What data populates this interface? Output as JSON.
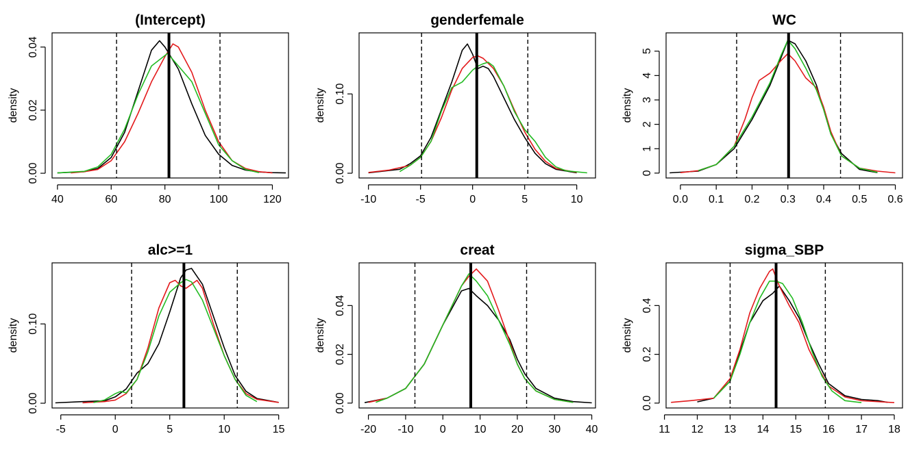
{
  "chart_data": [
    {
      "type": "line",
      "title": "(Intercept)",
      "xlabel": "",
      "ylabel": "density",
      "xlim": [
        38,
        126
      ],
      "ylim": [
        -0.0015,
        0.0445
      ],
      "xticks": [
        40,
        60,
        80,
        100,
        120
      ],
      "yticks": [
        0.0,
        0.02,
        0.04
      ],
      "ytick_labels": [
        "0.00",
        "0.02",
        "0.04"
      ],
      "posterior_mean": 81.5,
      "ci_lower": 62,
      "ci_upper": 100.5,
      "series": [
        {
          "color": "#000000",
          "x": [
            40,
            50,
            55,
            60,
            65,
            70,
            75,
            78,
            80,
            85,
            90,
            95,
            100,
            105,
            110,
            115,
            120,
            125
          ],
          "y": [
            0.0001,
            0.0005,
            0.0015,
            0.005,
            0.013,
            0.026,
            0.039,
            0.042,
            0.04,
            0.033,
            0.022,
            0.012,
            0.006,
            0.0025,
            0.001,
            0.0004,
            0.0002,
            0.0001
          ]
        },
        {
          "color": "#e31a1c",
          "x": [
            45,
            50,
            55,
            60,
            65,
            70,
            75,
            80,
            83,
            85,
            90,
            95,
            100,
            105,
            110,
            115,
            120
          ],
          "y": [
            0.0001,
            0.0005,
            0.0012,
            0.004,
            0.01,
            0.019,
            0.029,
            0.037,
            0.041,
            0.04,
            0.032,
            0.02,
            0.01,
            0.004,
            0.0015,
            0.0005,
            0.0001
          ]
        },
        {
          "color": "#22bb22",
          "x": [
            40,
            50,
            55,
            60,
            65,
            70,
            75,
            81,
            85,
            90,
            95,
            100,
            105,
            110,
            115
          ],
          "y": [
            0.0001,
            0.0006,
            0.002,
            0.006,
            0.014,
            0.025,
            0.034,
            0.038,
            0.034,
            0.029,
            0.019,
            0.009,
            0.004,
            0.0012,
            0.0002
          ]
        }
      ]
    },
    {
      "type": "line",
      "title": "genderfemale",
      "xlabel": "",
      "ylabel": "density",
      "xlim": [
        -10.9,
        11.8
      ],
      "ylim": [
        -0.006,
        0.177
      ],
      "xticks": [
        -10,
        -5,
        0,
        5,
        10
      ],
      "yticks": [
        0.0,
        0.1
      ],
      "ytick_labels": [
        "0.00",
        "0.10"
      ],
      "posterior_mean": 0.4,
      "ci_lower": -4.9,
      "ci_upper": 5.3,
      "series": [
        {
          "color": "#000000",
          "x": [
            -10,
            -7,
            -6,
            -5,
            -4,
            -3,
            -2,
            -1,
            -0.5,
            0,
            0.5,
            1,
            1.5,
            2,
            3,
            4,
            5,
            6,
            7,
            8,
            10
          ],
          "y": [
            0.0005,
            0.005,
            0.012,
            0.022,
            0.045,
            0.08,
            0.115,
            0.155,
            0.163,
            0.15,
            0.132,
            0.135,
            0.132,
            0.122,
            0.095,
            0.068,
            0.045,
            0.025,
            0.012,
            0.005,
            0.0005
          ]
        },
        {
          "color": "#e31a1c",
          "x": [
            -10,
            -8,
            -6,
            -5,
            -4,
            -3,
            -2,
            -1,
            0,
            0.5,
            1,
            2,
            3,
            4,
            5,
            6,
            7,
            8,
            10
          ],
          "y": [
            0.001,
            0.004,
            0.01,
            0.02,
            0.04,
            0.07,
            0.105,
            0.132,
            0.146,
            0.148,
            0.145,
            0.132,
            0.11,
            0.08,
            0.052,
            0.03,
            0.015,
            0.006,
            0.001
          ]
        },
        {
          "color": "#22bb22",
          "x": [
            -7,
            -6,
            -5,
            -4,
            -3,
            -2,
            -1,
            0,
            0.5,
            1,
            1.5,
            2,
            3,
            4,
            5,
            6,
            7,
            8,
            9,
            11
          ],
          "y": [
            0.002,
            0.01,
            0.02,
            0.04,
            0.078,
            0.108,
            0.115,
            0.13,
            0.135,
            0.138,
            0.14,
            0.135,
            0.11,
            0.078,
            0.055,
            0.04,
            0.02,
            0.008,
            0.003,
            0.0005
          ]
        }
      ]
    },
    {
      "type": "line",
      "title": "WC",
      "xlabel": "",
      "ylabel": "density",
      "xlim": [
        -0.04,
        0.62
      ],
      "ylim": [
        -0.2,
        5.75
      ],
      "xticks": [
        0.0,
        0.1,
        0.2,
        0.3,
        0.4,
        0.5,
        0.6
      ],
      "xtick_labels": [
        "0.0",
        "0.1",
        "0.2",
        "0.3",
        "0.4",
        "0.5",
        "0.6"
      ],
      "yticks": [
        0,
        1,
        2,
        3,
        4,
        5
      ],
      "ytick_labels": [
        "0",
        "1",
        "2",
        "3",
        "4",
        "5"
      ],
      "posterior_mean": 0.302,
      "ci_lower": 0.157,
      "ci_upper": 0.447,
      "series": [
        {
          "color": "#000000",
          "x": [
            -0.03,
            0.05,
            0.1,
            0.15,
            0.2,
            0.25,
            0.28,
            0.3,
            0.32,
            0.35,
            0.38,
            0.4,
            0.42,
            0.45,
            0.5,
            0.55
          ],
          "y": [
            0.01,
            0.08,
            0.35,
            1.0,
            2.2,
            3.6,
            4.7,
            5.45,
            5.3,
            4.6,
            3.6,
            2.6,
            1.6,
            0.8,
            0.15,
            0.02
          ]
        },
        {
          "color": "#e31a1c",
          "x": [
            0.0,
            0.05,
            0.1,
            0.15,
            0.18,
            0.2,
            0.22,
            0.25,
            0.28,
            0.3,
            0.32,
            0.35,
            0.38,
            0.4,
            0.42,
            0.45,
            0.5,
            0.55,
            0.6
          ],
          "y": [
            0.02,
            0.1,
            0.35,
            1.1,
            2.2,
            3.1,
            3.8,
            4.1,
            4.6,
            4.9,
            4.6,
            3.9,
            3.5,
            2.7,
            1.7,
            0.7,
            0.2,
            0.08,
            0.01
          ]
        },
        {
          "color": "#22bb22",
          "x": [
            0.05,
            0.1,
            0.15,
            0.2,
            0.25,
            0.28,
            0.3,
            0.32,
            0.35,
            0.38,
            0.4,
            0.42,
            0.45,
            0.5,
            0.55
          ],
          "y": [
            0.1,
            0.35,
            1.1,
            2.3,
            3.7,
            4.8,
            5.45,
            5.1,
            4.3,
            3.4,
            2.6,
            1.6,
            0.7,
            0.2,
            0.03
          ]
        }
      ]
    },
    {
      "type": "line",
      "title": "alc>=1",
      "xlabel": "",
      "ylabel": "density",
      "xlim": [
        -5.8,
        15.9
      ],
      "ylim": [
        -0.006,
        0.177
      ],
      "xticks": [
        -5,
        0,
        5,
        10,
        15
      ],
      "yticks": [
        0.0,
        0.1
      ],
      "ytick_labels": [
        "0.00",
        "0.10"
      ],
      "posterior_mean": 6.3,
      "ci_lower": 1.5,
      "ci_upper": 11.2,
      "series": [
        {
          "color": "#000000",
          "x": [
            -5.5,
            -3,
            -1,
            0,
            1,
            2,
            3,
            4,
            5,
            6,
            6.5,
            7,
            8,
            9,
            10,
            11,
            12,
            13,
            15
          ],
          "y": [
            0.0005,
            0.002,
            0.003,
            0.008,
            0.018,
            0.038,
            0.05,
            0.075,
            0.115,
            0.158,
            0.168,
            0.17,
            0.15,
            0.11,
            0.07,
            0.035,
            0.015,
            0.006,
            0.001
          ]
        },
        {
          "color": "#e31a1c",
          "x": [
            -3,
            -1,
            0,
            1,
            2,
            3,
            4,
            5,
            5.5,
            6,
            6.5,
            7,
            7.5,
            8,
            9,
            10,
            11,
            12,
            13,
            15
          ],
          "y": [
            0.0005,
            0.002,
            0.004,
            0.012,
            0.03,
            0.07,
            0.12,
            0.152,
            0.155,
            0.148,
            0.145,
            0.15,
            0.155,
            0.145,
            0.1,
            0.06,
            0.03,
            0.012,
            0.005,
            0.001
          ]
        },
        {
          "color": "#22bb22",
          "x": [
            -2,
            -1,
            0,
            0.5,
            1,
            2,
            3,
            4,
            5,
            6,
            6.5,
            7,
            8,
            9,
            10,
            11,
            12,
            13
          ],
          "y": [
            0.0008,
            0.004,
            0.012,
            0.015,
            0.013,
            0.03,
            0.065,
            0.11,
            0.14,
            0.152,
            0.156,
            0.153,
            0.13,
            0.095,
            0.06,
            0.03,
            0.01,
            0.002
          ]
        }
      ]
    },
    {
      "type": "line",
      "title": "creat",
      "xlabel": "",
      "ylabel": "density",
      "xlim": [
        -22.5,
        41
      ],
      "ylim": [
        -0.002,
        0.0575
      ],
      "xticks": [
        -20,
        -10,
        0,
        10,
        20,
        30,
        40
      ],
      "yticks": [
        0.0,
        0.02,
        0.04
      ],
      "ytick_labels": [
        "0.00",
        "0.02",
        "0.04"
      ],
      "posterior_mean": 7.5,
      "ci_lower": -7.5,
      "ci_upper": 22.5,
      "series": [
        {
          "color": "#000000",
          "x": [
            -21,
            -15,
            -10,
            -5,
            0,
            5,
            7,
            9,
            12,
            15,
            18,
            20,
            22,
            25,
            30,
            35,
            40
          ],
          "y": [
            0.0002,
            0.002,
            0.006,
            0.016,
            0.032,
            0.046,
            0.047,
            0.044,
            0.04,
            0.034,
            0.026,
            0.018,
            0.012,
            0.006,
            0.002,
            0.0006,
            0.0001
          ]
        },
        {
          "color": "#e31a1c",
          "x": [
            -20,
            -15,
            -10,
            -5,
            0,
            5,
            7,
            9,
            12,
            15,
            18,
            20,
            22,
            25,
            30,
            35
          ],
          "y": [
            0.0003,
            0.002,
            0.006,
            0.016,
            0.032,
            0.048,
            0.052,
            0.055,
            0.05,
            0.038,
            0.025,
            0.016,
            0.01,
            0.005,
            0.0015,
            0.0003
          ]
        },
        {
          "color": "#22bb22",
          "x": [
            -18,
            -15,
            -10,
            -5,
            0,
            5,
            7,
            9,
            12,
            15,
            18,
            20,
            22,
            25,
            30,
            35
          ],
          "y": [
            0.0003,
            0.002,
            0.006,
            0.016,
            0.032,
            0.048,
            0.053,
            0.05,
            0.044,
            0.034,
            0.024,
            0.016,
            0.01,
            0.005,
            0.0015,
            0.0003
          ]
        }
      ]
    },
    {
      "type": "line",
      "title": "sigma_SBP",
      "xlabel": "",
      "ylabel": "density",
      "xlim": [
        11.05,
        18.25
      ],
      "ylim": [
        -0.02,
        0.575
      ],
      "xticks": [
        11,
        12,
        13,
        14,
        15,
        16,
        17,
        18
      ],
      "yticks": [
        0.0,
        0.2,
        0.4
      ],
      "ytick_labels": [
        "0.0",
        "0.2",
        "0.4"
      ],
      "posterior_mean": 14.4,
      "ci_lower": 13.0,
      "ci_upper": 15.9,
      "series": [
        {
          "color": "#000000",
          "x": [
            12,
            12.5,
            13,
            13.3,
            13.6,
            14.0,
            14.3,
            14.5,
            14.8,
            15.1,
            15.4,
            15.7,
            16.0,
            16.5,
            17.0,
            17.5,
            17.8
          ],
          "y": [
            0.005,
            0.02,
            0.09,
            0.21,
            0.33,
            0.42,
            0.45,
            0.48,
            0.42,
            0.35,
            0.25,
            0.16,
            0.08,
            0.03,
            0.015,
            0.01,
            0.003
          ]
        },
        {
          "color": "#e31a1c",
          "x": [
            11.2,
            11.8,
            12.5,
            13.0,
            13.3,
            13.6,
            13.9,
            14.2,
            14.3,
            14.5,
            14.8,
            15.1,
            15.4,
            15.7,
            16.0,
            16.5,
            17.0,
            18.0
          ],
          "y": [
            0.003,
            0.01,
            0.02,
            0.1,
            0.22,
            0.37,
            0.47,
            0.54,
            0.55,
            0.48,
            0.4,
            0.33,
            0.22,
            0.14,
            0.07,
            0.025,
            0.01,
            0.002
          ]
        },
        {
          "color": "#22bb22",
          "x": [
            12.5,
            13.0,
            13.3,
            13.6,
            13.9,
            14.2,
            14.4,
            14.6,
            14.9,
            15.2,
            15.5,
            15.8,
            16.1,
            16.5,
            17.0
          ],
          "y": [
            0.02,
            0.09,
            0.2,
            0.33,
            0.43,
            0.5,
            0.5,
            0.49,
            0.43,
            0.33,
            0.21,
            0.11,
            0.05,
            0.01,
            0.002
          ]
        }
      ]
    }
  ]
}
